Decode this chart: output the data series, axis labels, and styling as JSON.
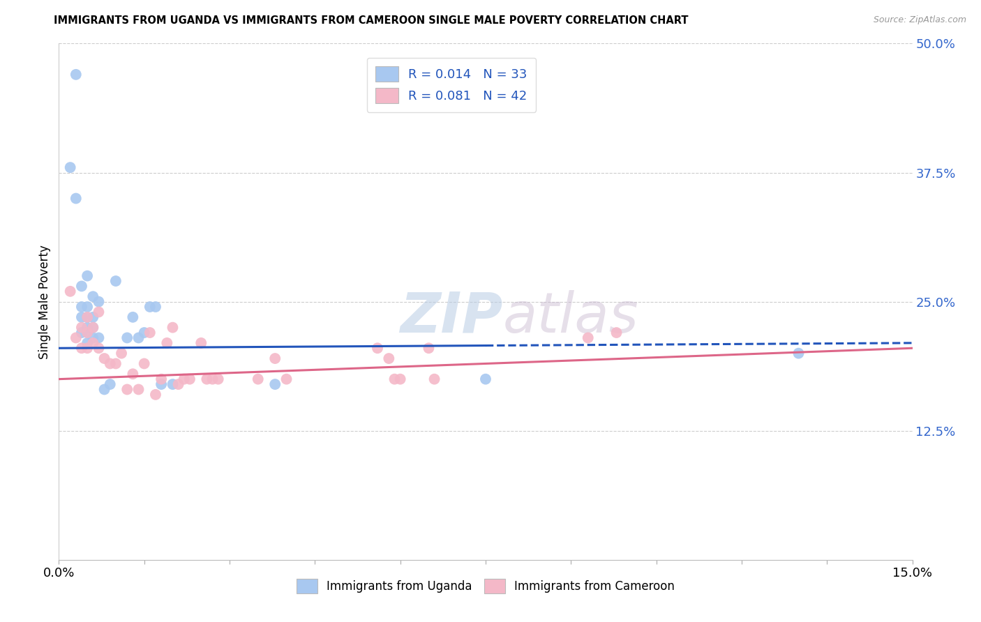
{
  "title": "IMMIGRANTS FROM UGANDA VS IMMIGRANTS FROM CAMEROON SINGLE MALE POVERTY CORRELATION CHART",
  "source": "Source: ZipAtlas.com",
  "ylabel": "Single Male Poverty",
  "x_min": 0.0,
  "x_max": 0.15,
  "y_min": 0.0,
  "y_max": 0.5,
  "uganda_R": "0.014",
  "uganda_N": "33",
  "cameroon_R": "0.081",
  "cameroon_N": "42",
  "uganda_color": "#a8c8f0",
  "cameroon_color": "#f4b8c8",
  "uganda_line_color": "#2255bb",
  "cameroon_line_color": "#dd6688",
  "legend_text_color": "#2255bb",
  "watermark_zip": "ZIP",
  "watermark_atlas": "atlas",
  "uganda_x": [
    0.002,
    0.003,
    0.003,
    0.004,
    0.004,
    0.004,
    0.004,
    0.005,
    0.005,
    0.005,
    0.005,
    0.005,
    0.005,
    0.006,
    0.006,
    0.006,
    0.006,
    0.007,
    0.007,
    0.008,
    0.009,
    0.01,
    0.012,
    0.013,
    0.014,
    0.015,
    0.016,
    0.017,
    0.018,
    0.02,
    0.038,
    0.075,
    0.13
  ],
  "uganda_y": [
    0.38,
    0.47,
    0.35,
    0.22,
    0.235,
    0.245,
    0.265,
    0.21,
    0.22,
    0.225,
    0.235,
    0.245,
    0.275,
    0.215,
    0.225,
    0.235,
    0.255,
    0.215,
    0.25,
    0.165,
    0.17,
    0.27,
    0.215,
    0.235,
    0.215,
    0.22,
    0.245,
    0.245,
    0.17,
    0.17,
    0.17,
    0.175,
    0.2
  ],
  "cameroon_x": [
    0.002,
    0.003,
    0.004,
    0.004,
    0.005,
    0.005,
    0.005,
    0.006,
    0.006,
    0.007,
    0.007,
    0.008,
    0.009,
    0.01,
    0.011,
    0.012,
    0.013,
    0.014,
    0.015,
    0.016,
    0.017,
    0.018,
    0.019,
    0.02,
    0.021,
    0.022,
    0.023,
    0.025,
    0.026,
    0.027,
    0.028,
    0.035,
    0.038,
    0.04,
    0.056,
    0.058,
    0.059,
    0.06,
    0.065,
    0.066,
    0.093,
    0.098
  ],
  "cameroon_y": [
    0.26,
    0.215,
    0.205,
    0.225,
    0.205,
    0.22,
    0.235,
    0.21,
    0.225,
    0.205,
    0.24,
    0.195,
    0.19,
    0.19,
    0.2,
    0.165,
    0.18,
    0.165,
    0.19,
    0.22,
    0.16,
    0.175,
    0.21,
    0.225,
    0.17,
    0.175,
    0.175,
    0.21,
    0.175,
    0.175,
    0.175,
    0.175,
    0.195,
    0.175,
    0.205,
    0.195,
    0.175,
    0.175,
    0.205,
    0.175,
    0.215,
    0.22
  ],
  "uganda_line_x0": 0.0,
  "uganda_line_x1": 0.15,
  "uganda_line_y0": 0.205,
  "uganda_line_y1": 0.21,
  "uganda_line_solid_end": 0.075,
  "cameroon_line_x0": 0.0,
  "cameroon_line_x1": 0.15,
  "cameroon_line_y0": 0.175,
  "cameroon_line_y1": 0.205,
  "background_color": "#ffffff",
  "grid_color": "#cccccc",
  "y_ticks_right": [
    0.0,
    0.125,
    0.25,
    0.375,
    0.5
  ],
  "y_tick_labels_right": [
    "",
    "12.5%",
    "25.0%",
    "37.5%",
    "50.0%"
  ],
  "x_ticks": [
    0.0,
    0.015,
    0.03,
    0.045,
    0.06,
    0.075,
    0.09,
    0.105,
    0.12,
    0.135,
    0.15
  ]
}
